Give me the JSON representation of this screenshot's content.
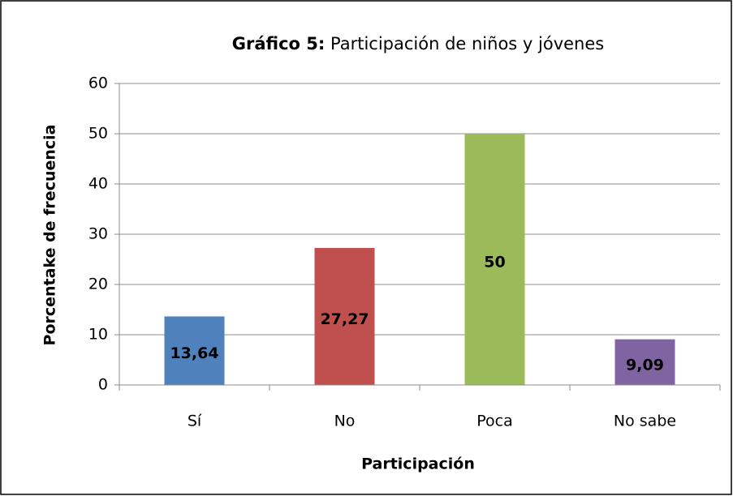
{
  "chart_data": {
    "type": "bar",
    "title_bold": "Gráfico 5:",
    "title": "Participación de niños y jóvenes",
    "x_label": "Participación",
    "y_label": "Porcentake de frecuencia",
    "categories": [
      "Sí",
      "No",
      "Poca",
      "No sabe"
    ],
    "values": [
      13.64,
      27.27,
      50,
      9.09
    ],
    "value_labels": [
      "13,64",
      "27,27",
      "50",
      "9,09"
    ],
    "colors": [
      "#4f81bd",
      "#c0504d",
      "#9bbb59",
      "#8064a2"
    ],
    "ylim": [
      0,
      60
    ],
    "yticks": [
      0,
      10,
      20,
      30,
      40,
      50,
      60
    ],
    "grid": true
  }
}
